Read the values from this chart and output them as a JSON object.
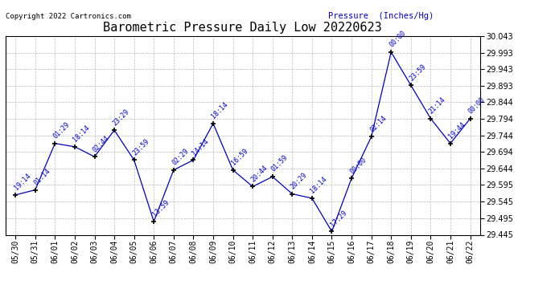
{
  "title": "Barometric Pressure Daily Low 20220623",
  "ylabel": "Pressure  (Inches/Hg)",
  "copyright": "Copyright 2022 Cartronics.com",
  "line_color": "#0000bb",
  "marker_color": "#000000",
  "background_color": "#ffffff",
  "grid_color": "#bbbbbb",
  "text_color_blue": "#0000cc",
  "text_color_black": "#000000",
  "ylim": [
    29.445,
    30.043
  ],
  "yticks": [
    29.445,
    29.495,
    29.545,
    29.595,
    29.644,
    29.694,
    29.744,
    29.794,
    29.844,
    29.893,
    29.943,
    29.993,
    30.043
  ],
  "dates": [
    "05/30",
    "05/31",
    "06/01",
    "06/02",
    "06/03",
    "06/04",
    "06/05",
    "06/06",
    "06/07",
    "06/08",
    "06/09",
    "06/10",
    "06/11",
    "06/12",
    "06/13",
    "06/14",
    "06/15",
    "06/16",
    "06/17",
    "06/18",
    "06/19",
    "06/20",
    "06/21",
    "06/22"
  ],
  "values": [
    29.565,
    29.58,
    29.72,
    29.71,
    29.68,
    29.76,
    29.67,
    29.485,
    29.64,
    29.67,
    29.78,
    29.64,
    29.59,
    29.62,
    29.568,
    29.555,
    29.455,
    29.615,
    29.74,
    29.995,
    29.895,
    29.795,
    29.72,
    29.795
  ],
  "point_labels": [
    "19:14",
    "01:14",
    "01:29",
    "18:14",
    "02:44",
    "23:29",
    "23:59",
    "13:59",
    "02:29",
    "14:14",
    "18:14",
    "16:59",
    "20:44",
    "01:59",
    "20:29",
    "18:14",
    "17:29",
    "00:00",
    "02:14",
    "00:00",
    "23:59",
    "21:14",
    "19:44",
    "00:00"
  ],
  "title_fontsize": 11,
  "tick_fontsize": 7,
  "point_label_fontsize": 6,
  "copyright_fontsize": 6.5,
  "ylabel_fontsize": 7.5
}
